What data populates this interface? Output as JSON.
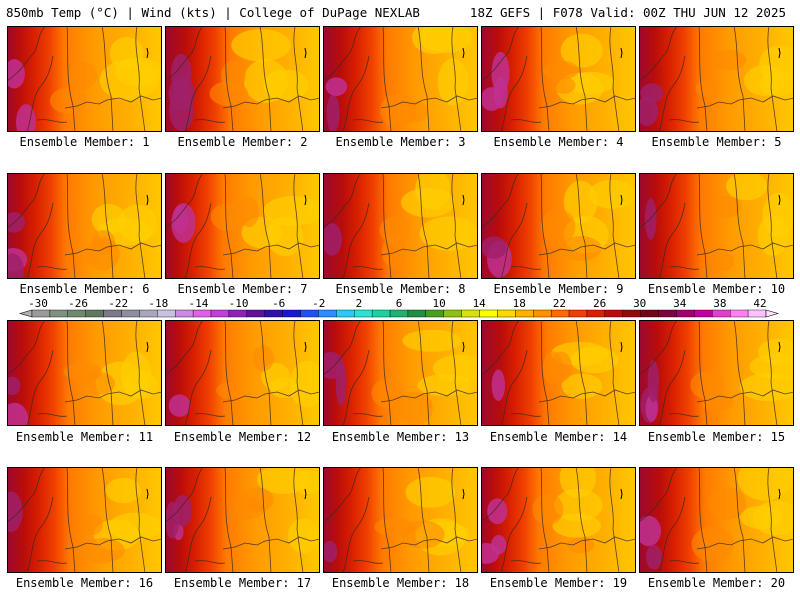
{
  "header": {
    "left": "850mb Temp (°C) | Wind (kts) | College of DuPage NEXLAB",
    "right": "18Z GEFS | F078 Valid: 00Z THU JUN 12 2025"
  },
  "member_label_prefix": "Ensemble Member:",
  "members": [
    1,
    2,
    3,
    4,
    5,
    6,
    7,
    8,
    9,
    10,
    11,
    12,
    13,
    14,
    15,
    16,
    17,
    18,
    19,
    20
  ],
  "colorbar": {
    "ticks": [
      "-30",
      "-26",
      "-22",
      "-18",
      "-14",
      "-10",
      "-6",
      "-2",
      "2",
      "6",
      "10",
      "14",
      "18",
      "22",
      "26",
      "30",
      "34",
      "38",
      "42"
    ],
    "bins": [
      "#9a9a9a",
      "#7f907f",
      "#6e8a6e",
      "#5e7a5e",
      "#7a7a8a",
      "#8e8e9e",
      "#a8a8bc",
      "#c8c0e0",
      "#d088e0",
      "#e060e8",
      "#c040d8",
      "#9020b8",
      "#6010a0",
      "#3010a8",
      "#1818d0",
      "#2050f0",
      "#2890ff",
      "#30c8f8",
      "#30e0d8",
      "#20d0a0",
      "#20b070",
      "#209040",
      "#48a020",
      "#90c018",
      "#d8e010",
      "#ffff00",
      "#ffd800",
      "#ffb000",
      "#ff9000",
      "#ff6a00",
      "#f04000",
      "#d82000",
      "#b80c0c",
      "#900a0a",
      "#70081c",
      "#800040",
      "#a00070",
      "#c000a0",
      "#e040d0",
      "#ff80f0",
      "#ffc0ff"
    ]
  }
}
